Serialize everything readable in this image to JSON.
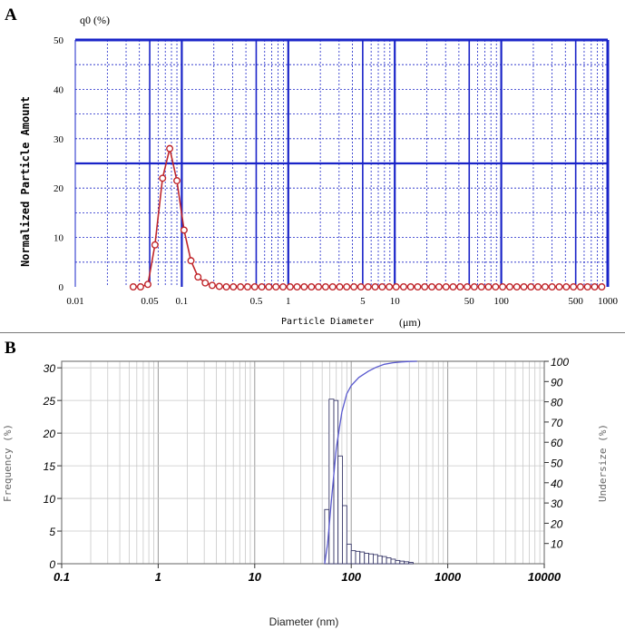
{
  "chart_data": [
    {
      "panel_label": "A",
      "type": "line",
      "title": "",
      "ylabel": "Normalized Particle Amount",
      "y_unit_label": "q0 (%)",
      "xlabel": "Particle Diameter",
      "x_unit_label": "(μm)",
      "x_scale": "log",
      "xlim": [
        0.01,
        1000
      ],
      "ylim": [
        0,
        50
      ],
      "x_tick_labels": [
        {
          "v": 0.01,
          "label": "0.01"
        },
        {
          "v": 0.05,
          "label": "0.05"
        },
        {
          "v": 0.1,
          "label": "0.1"
        },
        {
          "v": 0.5,
          "label": "0.5"
        },
        {
          "v": 1,
          "label": "1"
        },
        {
          "v": 5,
          "label": "5"
        },
        {
          "v": 10,
          "label": "10"
        },
        {
          "v": 50,
          "label": "50"
        },
        {
          "v": 100,
          "label": "100"
        },
        {
          "v": 500,
          "label": "500"
        },
        {
          "v": 1000,
          "label": "1000"
        }
      ],
      "y_tick_labels": [
        {
          "v": 0,
          "label": "0"
        },
        {
          "v": 10,
          "label": "10"
        },
        {
          "v": 20,
          "label": "20"
        },
        {
          "v": 30,
          "label": "30"
        },
        {
          "v": 40,
          "label": "40"
        },
        {
          "v": 50,
          "label": "50"
        }
      ],
      "grid": true,
      "colors": {
        "frame": "#1a24c8",
        "grid": "#1a24c8",
        "series": "#c0262b",
        "marker_fill": "#ffffff"
      },
      "series": [
        {
          "name": "q0",
          "x": [
            0.035,
            0.041,
            0.048,
            0.056,
            0.066,
            0.077,
            0.09,
            0.105,
            0.122,
            0.142,
            0.166,
            0.193,
            0.225,
            0.262,
            0.305,
            0.356,
            0.415,
            0.484,
            0.564,
            0.657,
            0.766,
            0.893,
            1.04,
            1.21,
            1.41,
            1.65,
            1.92,
            2.24,
            2.61,
            3.04,
            3.54,
            4.13,
            4.81,
            5.61,
            6.54,
            7.62,
            8.88,
            10.3,
            12.1,
            14.1,
            16.4,
            19.1,
            22.3,
            26.0,
            30.3,
            35.3,
            41.1,
            47.9,
            55.8,
            65.1,
            75.8,
            88.4,
            103,
            120,
            140,
            163,
            190,
            221,
            258,
            300,
            350,
            408,
            476,
            554,
            646,
            753,
            878
          ],
          "values": [
            0,
            0,
            0.5,
            8.5,
            22,
            28,
            21.5,
            11.5,
            5.3,
            2.0,
            0.8,
            0.3,
            0.1,
            0,
            0,
            0,
            0,
            0,
            0,
            0,
            0,
            0,
            0,
            0,
            0,
            0,
            0,
            0,
            0,
            0,
            0,
            0,
            0,
            0,
            0,
            0,
            0,
            0,
            0,
            0,
            0,
            0,
            0,
            0,
            0,
            0,
            0,
            0,
            0,
            0,
            0,
            0,
            0,
            0,
            0,
            0,
            0,
            0,
            0,
            0,
            0,
            0,
            0,
            0,
            0,
            0,
            0
          ]
        }
      ]
    },
    {
      "panel_label": "B",
      "type": "bar",
      "title": "",
      "ylabel": "Frequency (%)",
      "y2label": "Undersize (%)",
      "xlabel": "Diameter (nm)",
      "x_scale": "log",
      "xlim": [
        0.1,
        10000
      ],
      "ylim": [
        0,
        31
      ],
      "y2lim": [
        0,
        100
      ],
      "x_tick_labels": [
        {
          "v": 0.1,
          "label": "0.1"
        },
        {
          "v": 1,
          "label": "1"
        },
        {
          "v": 10,
          "label": "10"
        },
        {
          "v": 100,
          "label": "100"
        },
        {
          "v": 1000,
          "label": "1000"
        },
        {
          "v": 10000,
          "label": "10000"
        }
      ],
      "y_tick_labels": [
        {
          "v": 0,
          "label": "0"
        },
        {
          "v": 5,
          "label": "5"
        },
        {
          "v": 10,
          "label": "10"
        },
        {
          "v": 15,
          "label": "15"
        },
        {
          "v": 20,
          "label": "20"
        },
        {
          "v": 25,
          "label": "25"
        },
        {
          "v": 30,
          "label": "30"
        }
      ],
      "y2_tick_labels": [
        {
          "v": 10,
          "label": "10"
        },
        {
          "v": 20,
          "label": "20"
        },
        {
          "v": 30,
          "label": "30"
        },
        {
          "v": 40,
          "label": "40"
        },
        {
          "v": 50,
          "label": "50"
        },
        {
          "v": 60,
          "label": "60"
        },
        {
          "v": 70,
          "label": "70"
        },
        {
          "v": 80,
          "label": "80"
        },
        {
          "v": 90,
          "label": "90"
        },
        {
          "v": 100,
          "label": "100"
        }
      ],
      "grid": true,
      "colors": {
        "frame": "#7d7d7d",
        "grid": "#c8c8c8",
        "bars": "#3a3a6a",
        "undersize": "#5a5acf"
      },
      "series": [
        {
          "name": "Frequency",
          "bin_edges": [
            53,
            59,
            66,
            73,
            81,
            90,
            100,
            111,
            123,
            137,
            152,
            169,
            188,
            209,
            232,
            258,
            287,
            319,
            354,
            394,
            438
          ],
          "values": [
            8.3,
            25.2,
            25.0,
            16.5,
            8.9,
            3.0,
            2.0,
            1.9,
            1.8,
            1.6,
            1.5,
            1.4,
            1.2,
            1.1,
            0.9,
            0.7,
            0.5,
            0.4,
            0.3,
            0.2
          ]
        },
        {
          "name": "Undersize",
          "axis": "y2",
          "x": [
            53,
            57,
            62,
            70,
            80,
            90,
            100,
            120,
            150,
            180,
            220,
            270,
            330,
            400,
            480
          ],
          "values": [
            0,
            10,
            30,
            57,
            75,
            84,
            88,
            92,
            95,
            97,
            98.5,
            99.3,
            99.7,
            99.9,
            100
          ]
        }
      ]
    }
  ]
}
